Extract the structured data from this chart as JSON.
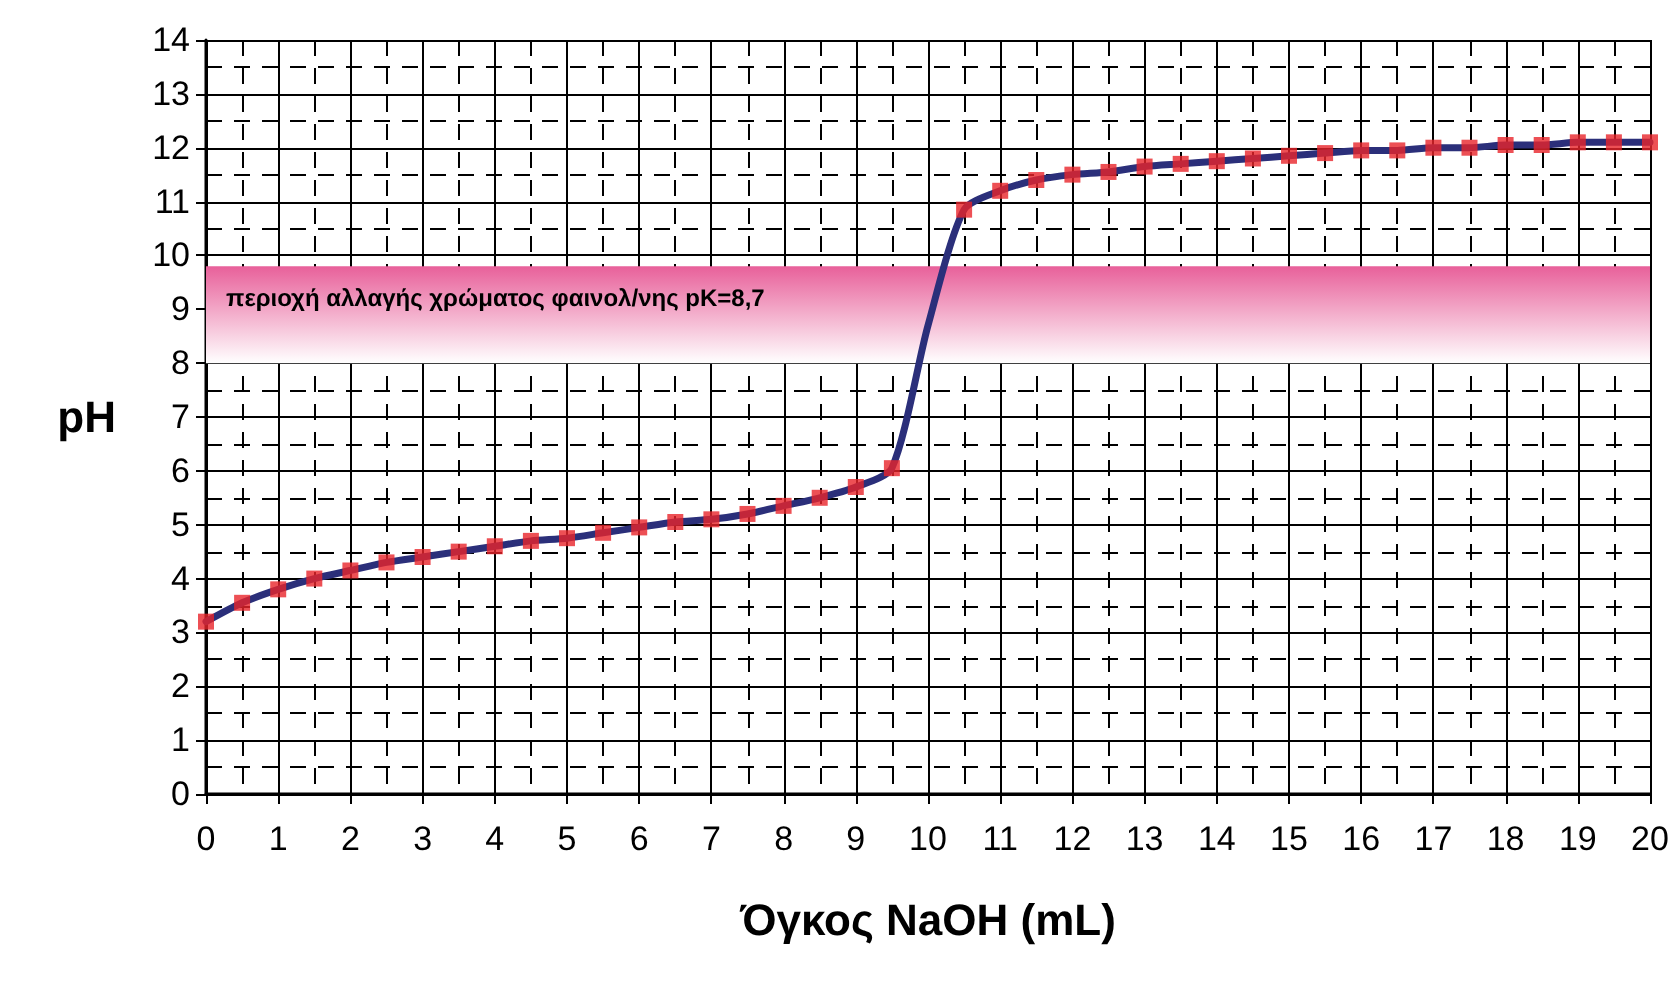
{
  "chart_data": {
    "type": "line",
    "xlabel": "Όγκος NaOH (mL)",
    "ylabel": "pH",
    "series": [
      {
        "color": "#2b2f7a",
        "marker": "none",
        "x": [
          0,
          0.5,
          1,
          1.5,
          2,
          2.5,
          3,
          3.5,
          4,
          4.5,
          5,
          5.5,
          6,
          6.5,
          7,
          7.5,
          8,
          8.5,
          9,
          9.5,
          10,
          10.5,
          11,
          11.5,
          12,
          12.5,
          13,
          13.5,
          14,
          14.5,
          15,
          15.5,
          16,
          16.5,
          17,
          17.5,
          18,
          18.5,
          19,
          19.5,
          20
        ],
        "values": [
          3.2,
          3.55,
          3.8,
          4.0,
          4.15,
          4.3,
          4.4,
          4.5,
          4.6,
          4.7,
          4.75,
          4.85,
          4.95,
          5.05,
          5.1,
          5.2,
          5.35,
          5.5,
          5.7,
          6.05,
          8.7,
          10.85,
          11.2,
          11.4,
          11.5,
          11.55,
          11.65,
          11.7,
          11.75,
          11.8,
          11.85,
          11.9,
          11.95,
          11.95,
          12.0,
          12.0,
          12.05,
          12.05,
          12.1,
          12.1,
          12.1
        ]
      },
      {
        "type": "scatter",
        "color": "#e8242a",
        "marker": "square",
        "x": [
          0,
          0.5,
          1,
          1.5,
          2,
          2.5,
          3,
          3.5,
          4,
          4.5,
          5,
          5.5,
          6,
          6.5,
          7,
          7.5,
          8,
          8.5,
          9,
          9.5,
          10.5,
          11,
          11.5,
          12,
          12.5,
          13,
          13.5,
          14,
          14.5,
          15,
          15.5,
          16,
          16.5,
          17,
          17.5,
          18,
          18.5,
          19,
          19.5,
          20
        ],
        "values": [
          3.2,
          3.55,
          3.8,
          4.0,
          4.15,
          4.3,
          4.4,
          4.5,
          4.6,
          4.7,
          4.75,
          4.85,
          4.95,
          5.05,
          5.1,
          5.2,
          5.35,
          5.5,
          5.7,
          6.05,
          10.85,
          11.2,
          11.4,
          11.5,
          11.55,
          11.65,
          11.7,
          11.75,
          11.8,
          11.85,
          11.9,
          11.95,
          11.95,
          12.0,
          12.0,
          12.05,
          12.05,
          12.1,
          12.1,
          12.1
        ]
      }
    ],
    "xlim": [
      0,
      20
    ],
    "xticks": [
      0,
      1,
      2,
      3,
      4,
      5,
      6,
      7,
      8,
      9,
      10,
      11,
      12,
      13,
      14,
      15,
      16,
      17,
      18,
      19,
      20
    ],
    "ylim": [
      0,
      14
    ],
    "yticks": [
      0,
      1,
      2,
      3,
      4,
      5,
      6,
      7,
      8,
      9,
      10,
      11,
      12,
      13,
      14
    ],
    "bands": [
      {
        "axis": "y",
        "from": 8,
        "to": 9.8,
        "label": "περιοχή αλλαγής χρώματος φαινολ/νης pK=8,7",
        "color": "#e8609a"
      }
    ],
    "grid": true,
    "line_style": "solid"
  }
}
